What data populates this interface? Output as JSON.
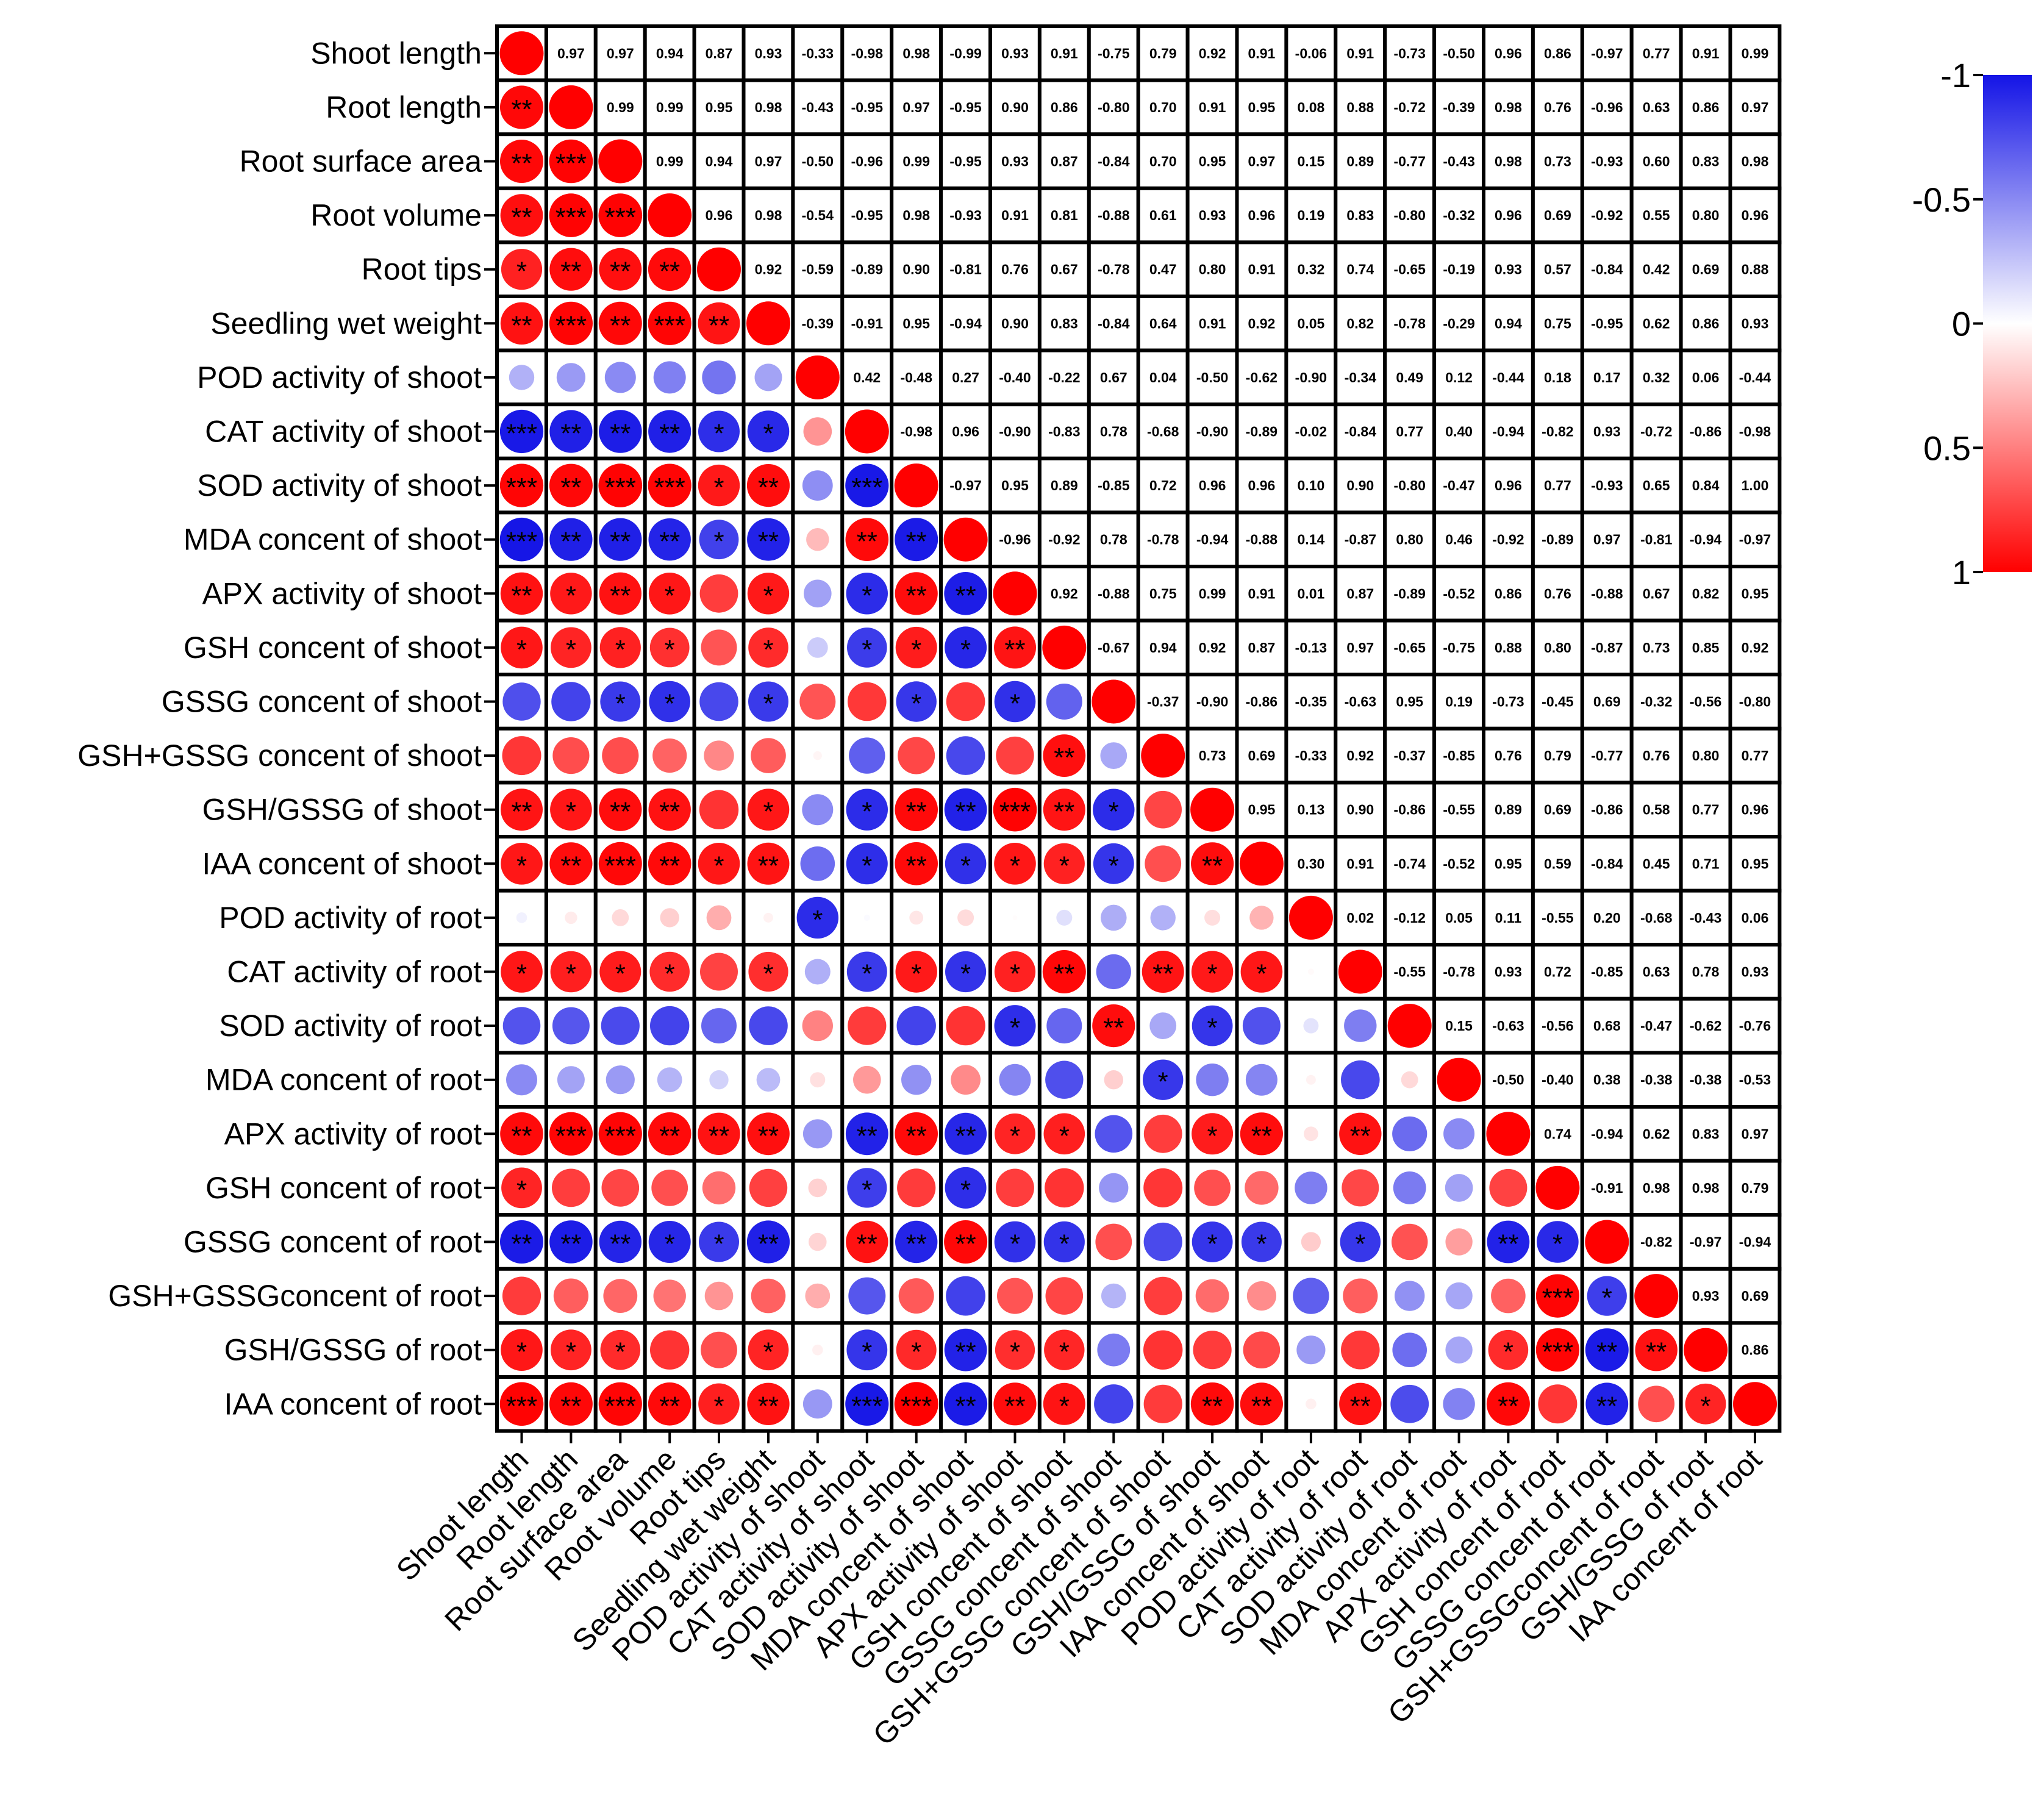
{
  "chart_data": {
    "type": "heatmap",
    "variables": [
      "Shoot length",
      "Root length",
      "Root surface area",
      "Root volume",
      "Root tips",
      "Seedling wet weight",
      "POD activity of shoot",
      "CAT activity of shoot",
      "SOD activity of shoot",
      "MDA concent of shoot",
      "APX activity of shoot",
      "GSH concent of shoot",
      "GSSG concent of shoot",
      "GSH+GSSG concent of shoot",
      "GSH/GSSG of shoot",
      "IAA concent of shoot",
      "POD activity of root",
      "CAT activity of root",
      "SOD activity of root",
      "MDA concent of root",
      "APX activity of root",
      "GSH concent of root",
      "GSSG concent of root",
      "GSH+GSSGconcent of root",
      "GSH/GSSG of root",
      "IAA concent of root"
    ],
    "upper_values": [
      [
        0.97,
        0.97,
        0.94,
        0.87,
        0.93,
        -0.33,
        -0.98,
        0.98,
        -0.99,
        0.93,
        0.91,
        -0.75,
        0.79,
        0.92,
        0.91,
        -0.06,
        0.91,
        -0.73,
        -0.5,
        0.96,
        0.86,
        -0.97,
        0.77,
        0.91,
        0.99
      ],
      [
        0.99,
        0.99,
        0.95,
        0.98,
        -0.43,
        -0.95,
        0.97,
        -0.95,
        0.9,
        0.86,
        -0.8,
        0.7,
        0.91,
        0.95,
        0.08,
        0.88,
        -0.72,
        -0.39,
        0.98,
        0.76,
        -0.96,
        0.63,
        0.86,
        0.97
      ],
      [
        0.99,
        0.94,
        0.97,
        -0.5,
        -0.96,
        0.99,
        -0.95,
        0.93,
        0.87,
        -0.84,
        0.7,
        0.95,
        0.97,
        0.15,
        0.89,
        -0.77,
        -0.43,
        0.98,
        0.73,
        -0.93,
        0.6,
        0.83,
        0.98
      ],
      [
        0.96,
        0.98,
        -0.54,
        -0.95,
        0.98,
        -0.93,
        0.91,
        0.81,
        -0.88,
        0.61,
        0.93,
        0.96,
        0.19,
        0.83,
        -0.8,
        -0.32,
        0.96,
        0.69,
        -0.92,
        0.55,
        0.8,
        0.96
      ],
      [
        0.92,
        -0.59,
        -0.89,
        0.9,
        -0.81,
        0.76,
        0.67,
        -0.78,
        0.47,
        0.8,
        0.91,
        0.32,
        0.74,
        -0.65,
        -0.19,
        0.93,
        0.57,
        -0.84,
        0.42,
        0.69,
        0.88
      ],
      [
        -0.39,
        -0.91,
        0.95,
        -0.94,
        0.9,
        0.83,
        -0.84,
        0.64,
        0.91,
        0.92,
        0.05,
        0.82,
        -0.78,
        -0.29,
        0.94,
        0.75,
        -0.95,
        0.62,
        0.86,
        0.93
      ],
      [
        0.42,
        -0.48,
        0.27,
        -0.4,
        -0.22,
        0.67,
        0.04,
        -0.5,
        -0.62,
        -0.9,
        -0.34,
        0.49,
        0.12,
        -0.44,
        0.18,
        0.17,
        0.32,
        0.06,
        -0.44
      ],
      [
        -0.98,
        0.96,
        -0.9,
        -0.83,
        0.78,
        -0.68,
        -0.9,
        -0.89,
        -0.02,
        -0.84,
        0.77,
        0.4,
        -0.94,
        -0.82,
        0.93,
        -0.72,
        -0.86,
        -0.98
      ],
      [
        -0.97,
        0.95,
        0.89,
        -0.85,
        0.72,
        0.96,
        0.96,
        0.1,
        0.9,
        -0.8,
        -0.47,
        0.96,
        0.77,
        -0.93,
        0.65,
        0.84,
        1.0
      ],
      [
        -0.96,
        -0.92,
        0.78,
        -0.78,
        -0.94,
        -0.88,
        0.14,
        -0.87,
        0.8,
        0.46,
        -0.92,
        -0.89,
        0.97,
        -0.81,
        -0.94,
        -0.97
      ],
      [
        0.92,
        -0.88,
        0.75,
        0.99,
        0.91,
        0.01,
        0.87,
        -0.89,
        -0.52,
        0.86,
        0.76,
        -0.88,
        0.67,
        0.82,
        0.95
      ],
      [
        -0.67,
        0.94,
        0.92,
        0.87,
        -0.13,
        0.97,
        -0.65,
        -0.75,
        0.88,
        0.8,
        -0.87,
        0.73,
        0.85,
        0.92
      ],
      [
        -0.37,
        -0.9,
        -0.86,
        -0.35,
        -0.63,
        0.95,
        0.19,
        -0.73,
        -0.45,
        0.69,
        -0.32,
        -0.56,
        -0.8
      ],
      [
        0.73,
        0.69,
        -0.33,
        0.92,
        -0.37,
        -0.85,
        0.76,
        0.79,
        -0.77,
        0.76,
        0.8,
        0.77
      ],
      [
        0.95,
        0.13,
        0.9,
        -0.86,
        -0.55,
        0.89,
        0.69,
        -0.86,
        0.58,
        0.77,
        0.96
      ],
      [
        0.3,
        0.91,
        -0.74,
        -0.52,
        0.95,
        0.59,
        -0.84,
        0.45,
        0.71,
        0.95
      ],
      [
        0.02,
        -0.12,
        0.05,
        0.11,
        -0.55,
        0.2,
        -0.68,
        -0.43,
        0.06
      ],
      [
        -0.55,
        -0.78,
        0.93,
        0.72,
        -0.85,
        0.63,
        0.78,
        0.93
      ],
      [
        0.15,
        -0.63,
        -0.56,
        0.68,
        -0.47,
        -0.62,
        -0.76
      ],
      [
        -0.5,
        -0.4,
        0.38,
        -0.38,
        -0.38,
        -0.53
      ],
      [
        0.74,
        -0.94,
        0.62,
        0.83,
        0.97
      ],
      [
        -0.91,
        0.98,
        0.98,
        0.79
      ],
      [
        -0.82,
        -0.97,
        -0.94
      ],
      [
        0.93,
        0.69
      ],
      [
        0.86
      ],
      []
    ],
    "significance": [
      [],
      [
        "**"
      ],
      [
        "**",
        "***"
      ],
      [
        "**",
        "***",
        "***"
      ],
      [
        "*",
        "**",
        "**",
        "**"
      ],
      [
        "**",
        "***",
        "**",
        "***",
        "**"
      ],
      [
        "",
        "",
        "",
        "",
        "",
        ""
      ],
      [
        "***",
        "**",
        "**",
        "**",
        "*",
        "*",
        ""
      ],
      [
        "***",
        "**",
        "***",
        "***",
        "*",
        "**",
        "",
        "***"
      ],
      [
        "***",
        "**",
        "**",
        "**",
        "*",
        "**",
        "",
        "**",
        "**"
      ],
      [
        "**",
        "*",
        "**",
        "*",
        "",
        "*",
        "",
        "*",
        "**",
        "**"
      ],
      [
        "*",
        "*",
        "*",
        "*",
        "",
        "*",
        "",
        "*",
        "*",
        "*",
        "**"
      ],
      [
        "",
        "",
        "*",
        "*",
        "",
        "*",
        "",
        "",
        "*",
        "",
        "*",
        ""
      ],
      [
        "",
        "",
        "",
        "",
        "",
        "",
        "",
        "",
        "",
        "",
        "",
        "**",
        ""
      ],
      [
        "**",
        "*",
        "**",
        "**",
        "",
        "*",
        "",
        "*",
        "**",
        "**",
        "***",
        "**",
        "*"
      ],
      [
        "*",
        "**",
        "***",
        "**",
        "*",
        "**",
        "",
        "*",
        "**",
        "*",
        "*",
        "*",
        "*",
        "",
        "**"
      ],
      [
        "",
        "",
        "",
        "",
        "",
        "",
        "*",
        "",
        "",
        "",
        "",
        "",
        "",
        "",
        "",
        ""
      ],
      [
        "*",
        "*",
        "*",
        "*",
        "",
        "*",
        "",
        "*",
        "*",
        "*",
        "*",
        "**",
        "",
        "**",
        "*",
        "*",
        ""
      ],
      [
        "",
        "",
        "",
        "",
        "",
        "",
        "",
        "",
        "",
        "",
        "*",
        "",
        "**",
        "",
        "*",
        "",
        "",
        ""
      ],
      [
        "",
        "",
        "",
        "",
        "",
        "",
        "",
        "",
        "",
        "",
        "",
        "",
        "",
        "*",
        "",
        "",
        "",
        "",
        ""
      ],
      [
        "**",
        "***",
        "***",
        "**",
        "**",
        "**",
        "",
        "**",
        "**",
        "**",
        "*",
        "*",
        "",
        "",
        "*",
        "**",
        "",
        "**",
        "",
        ""
      ],
      [
        "*",
        "",
        "",
        "",
        "",
        "",
        "",
        "*",
        "",
        "*",
        "",
        "",
        "",
        "",
        "",
        "",
        "",
        "",
        "",
        "",
        ""
      ],
      [
        "**",
        "**",
        "**",
        "*",
        "*",
        "**",
        "",
        "**",
        "**",
        "**",
        "*",
        "*",
        "",
        "",
        "*",
        "*",
        "",
        "*",
        "",
        "",
        "**",
        "*"
      ],
      [
        "",
        "",
        "",
        "",
        "",
        "",
        "",
        "",
        "",
        "",
        "",
        "",
        "",
        "",
        "",
        "",
        "",
        "",
        "",
        "",
        "",
        "***",
        "*"
      ],
      [
        "*",
        "*",
        "*",
        "",
        "",
        "*",
        "",
        "*",
        "*",
        "**",
        "*",
        "*",
        "",
        "",
        "",
        "",
        "",
        "",
        "",
        "",
        "*",
        "***",
        "**",
        "**"
      ],
      [
        "***",
        "**",
        "***",
        "**",
        "*",
        "**",
        "",
        "***",
        "***",
        "**",
        "**",
        "*",
        "",
        "",
        "**",
        "**",
        "",
        "**",
        "",
        "",
        "**",
        "",
        "**",
        "",
        "*"
      ]
    ],
    "colorbar": {
      "ticks": [
        "-1",
        "-0.5",
        "0",
        "0.5",
        "1"
      ],
      "negative_color": "#1414e6",
      "positive_color": "#ff0000",
      "neutral_color": "#ffffff"
    }
  }
}
